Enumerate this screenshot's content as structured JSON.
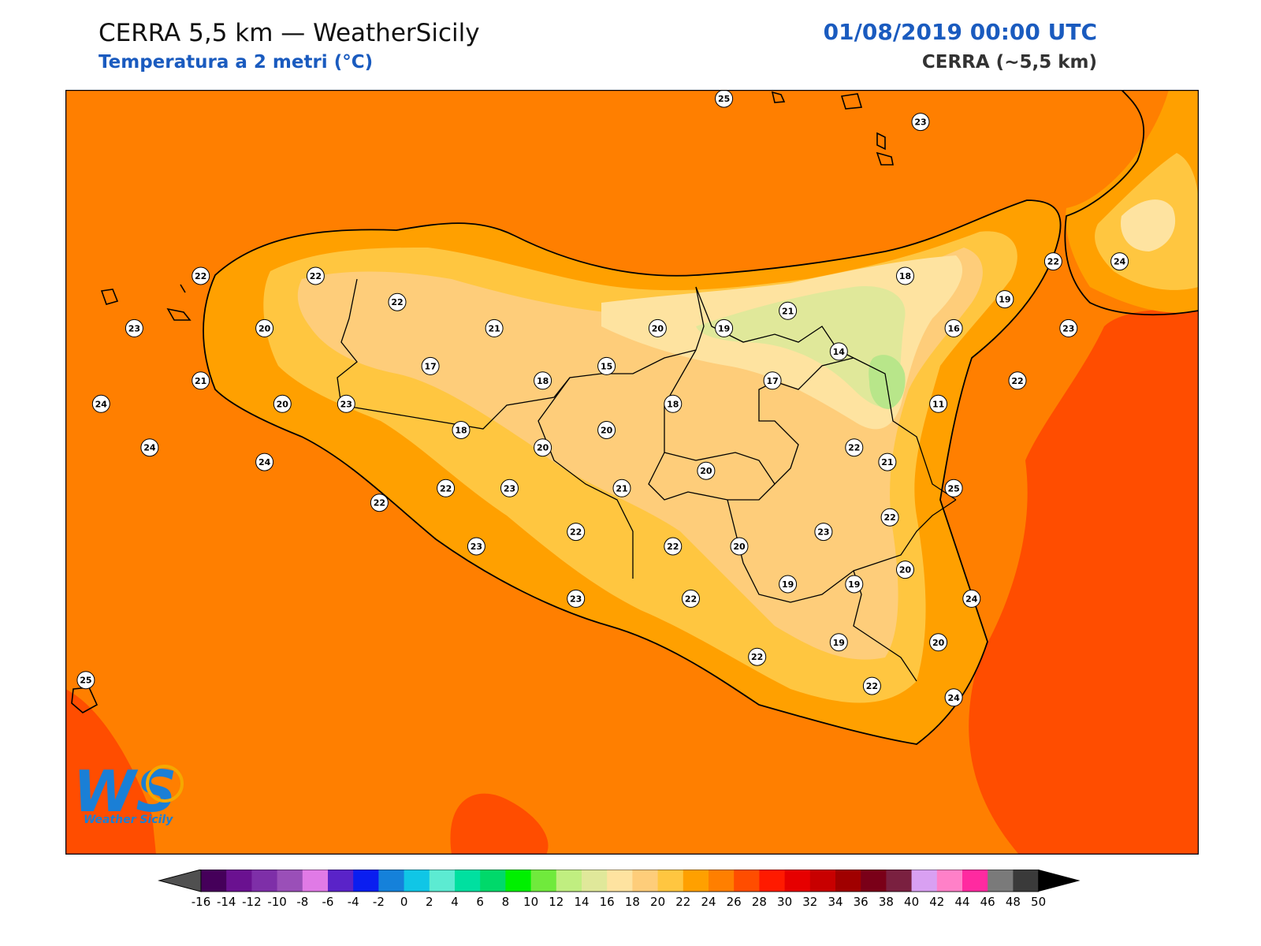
{
  "header": {
    "title": "CERRA 5,5 km — WeatherSicily",
    "subtitle": "Temperatura a 2 metri (°C)",
    "datetime": "01/08/2019 00:00 UTC",
    "model": "CERRA (~5,5 km)"
  },
  "logo": {
    "letters": "WS",
    "text": "Weather Sicily"
  },
  "colors": {
    "sea_26": "#ff7f00",
    "sea_28": "#ff4d00",
    "land_24": "#ffa000",
    "land_22": "#ffc640",
    "land_20": "#fecd7a",
    "land_18": "#fee3a0",
    "land_16": "#e0e89a",
    "land_14": "#b8e68a",
    "frame": "#000000",
    "title_blue": "#1a5bbf"
  },
  "stations": [
    {
      "value": "25",
      "lon": 14.43,
      "lat": 38.8
    },
    {
      "value": "23",
      "lon": 15.2,
      "lat": 38.72
    },
    {
      "value": "22",
      "lon": 12.38,
      "lat": 38.19
    },
    {
      "value": "22",
      "lon": 12.83,
      "lat": 38.19
    },
    {
      "value": "22",
      "lon": 13.15,
      "lat": 38.1
    },
    {
      "value": "23",
      "lon": 12.12,
      "lat": 38.01
    },
    {
      "value": "20",
      "lon": 12.63,
      "lat": 38.01
    },
    {
      "value": "21",
      "lon": 13.53,
      "lat": 38.01
    },
    {
      "value": "20",
      "lon": 14.17,
      "lat": 38.01
    },
    {
      "value": "19",
      "lon": 14.43,
      "lat": 38.01
    },
    {
      "value": "21",
      "lon": 14.68,
      "lat": 38.07
    },
    {
      "value": "18",
      "lon": 15.14,
      "lat": 38.19
    },
    {
      "value": "19",
      "lon": 15.53,
      "lat": 38.11
    },
    {
      "value": "22",
      "lon": 15.72,
      "lat": 38.24
    },
    {
      "value": "24",
      "lon": 15.98,
      "lat": 38.24
    },
    {
      "value": "16",
      "lon": 15.33,
      "lat": 38.01
    },
    {
      "value": "23",
      "lon": 15.78,
      "lat": 38.01
    },
    {
      "value": "14",
      "lon": 14.88,
      "lat": 37.93
    },
    {
      "value": "17",
      "lon": 13.28,
      "lat": 37.88
    },
    {
      "value": "15",
      "lon": 13.97,
      "lat": 37.88
    },
    {
      "value": "21",
      "lon": 12.38,
      "lat": 37.83
    },
    {
      "value": "18",
      "lon": 13.72,
      "lat": 37.83
    },
    {
      "value": "17",
      "lon": 14.62,
      "lat": 37.83
    },
    {
      "value": "22",
      "lon": 15.58,
      "lat": 37.83
    },
    {
      "value": "24",
      "lon": 11.99,
      "lat": 37.75
    },
    {
      "value": "20",
      "lon": 12.7,
      "lat": 37.75
    },
    {
      "value": "23",
      "lon": 12.95,
      "lat": 37.75
    },
    {
      "value": "18",
      "lon": 14.23,
      "lat": 37.75
    },
    {
      "value": "11",
      "lon": 15.27,
      "lat": 37.75
    },
    {
      "value": "18",
      "lon": 13.4,
      "lat": 37.66
    },
    {
      "value": "20",
      "lon": 13.97,
      "lat": 37.66
    },
    {
      "value": "24",
      "lon": 12.18,
      "lat": 37.6
    },
    {
      "value": "20",
      "lon": 13.72,
      "lat": 37.6
    },
    {
      "value": "22",
      "lon": 14.94,
      "lat": 37.6
    },
    {
      "value": "24",
      "lon": 12.63,
      "lat": 37.55
    },
    {
      "value": "21",
      "lon": 15.07,
      "lat": 37.55
    },
    {
      "value": "20",
      "lon": 14.36,
      "lat": 37.52
    },
    {
      "value": "22",
      "lon": 13.34,
      "lat": 37.46
    },
    {
      "value": "23",
      "lon": 13.59,
      "lat": 37.46
    },
    {
      "value": "21",
      "lon": 14.03,
      "lat": 37.46
    },
    {
      "value": "25",
      "lon": 15.33,
      "lat": 37.46
    },
    {
      "value": "22",
      "lon": 13.08,
      "lat": 37.41
    },
    {
      "value": "22",
      "lon": 15.08,
      "lat": 37.36
    },
    {
      "value": "22",
      "lon": 13.85,
      "lat": 37.31
    },
    {
      "value": "23",
      "lon": 14.82,
      "lat": 37.31
    },
    {
      "value": "23",
      "lon": 13.46,
      "lat": 37.26
    },
    {
      "value": "22",
      "lon": 14.23,
      "lat": 37.26
    },
    {
      "value": "20",
      "lon": 14.49,
      "lat": 37.26
    },
    {
      "value": "20",
      "lon": 15.14,
      "lat": 37.18
    },
    {
      "value": "19",
      "lon": 14.68,
      "lat": 37.13
    },
    {
      "value": "19",
      "lon": 14.94,
      "lat": 37.13
    },
    {
      "value": "23",
      "lon": 13.85,
      "lat": 37.08
    },
    {
      "value": "22",
      "lon": 14.3,
      "lat": 37.08
    },
    {
      "value": "24",
      "lon": 15.4,
      "lat": 37.08
    },
    {
      "value": "19",
      "lon": 14.88,
      "lat": 36.93
    },
    {
      "value": "20",
      "lon": 15.27,
      "lat": 36.93
    },
    {
      "value": "22",
      "lon": 14.56,
      "lat": 36.88
    },
    {
      "value": "25",
      "lon": 11.93,
      "lat": 36.8
    },
    {
      "value": "22",
      "lon": 15.01,
      "lat": 36.78
    },
    {
      "value": "24",
      "lon": 15.33,
      "lat": 36.74
    }
  ],
  "colorbar": {
    "ticks": [
      "-16",
      "-14",
      "-12",
      "-10",
      "-8",
      "-6",
      "-4",
      "-2",
      "0",
      "2",
      "4",
      "6",
      "8",
      "10",
      "12",
      "14",
      "16",
      "18",
      "20",
      "22",
      "24",
      "26",
      "28",
      "30",
      "32",
      "34",
      "36",
      "38",
      "40",
      "42",
      "44",
      "46",
      "48",
      "50"
    ],
    "colors": [
      "#45005a",
      "#6a1190",
      "#7e2fa8",
      "#9a4fb8",
      "#e07ae6",
      "#5a23c8",
      "#0a1ef0",
      "#1581da",
      "#10c6e6",
      "#5cebd2",
      "#00e0a0",
      "#00d96a",
      "#00f000",
      "#70ea3c",
      "#c0ee80",
      "#e0e89a",
      "#fee3a0",
      "#fecd7a",
      "#ffc640",
      "#ffa000",
      "#ff7f00",
      "#ff4d00",
      "#ff1a00",
      "#e60000",
      "#c80000",
      "#a00000",
      "#7a0018",
      "#7a2040",
      "#d9a0f2",
      "#ff80c8",
      "#ff2aa0",
      "#7a7a7a",
      "#3a3a3a"
    ],
    "under_color": "#505050",
    "over_color": "#000000"
  }
}
